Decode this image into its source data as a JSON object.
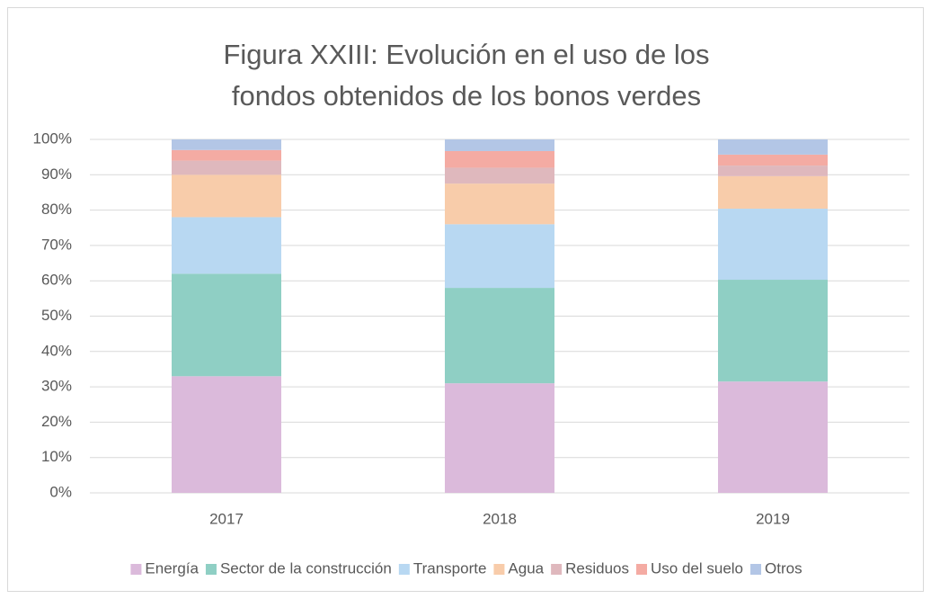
{
  "chart_data": {
    "type": "stacked_bar",
    "title": "Figura XXIII: Evolución en el uso de los fondos obtenidos de los bonos verdes",
    "categories": [
      "2017",
      "2018",
      "2019"
    ],
    "series": [
      {
        "name": "Energía",
        "color": "#dbbadb",
        "values": [
          33,
          31,
          31.5
        ]
      },
      {
        "name": "Sector de la construcción",
        "color": "#8fcfc4",
        "values": [
          29,
          27,
          28.8
        ]
      },
      {
        "name": "Transporte",
        "color": "#b8d8f2",
        "values": [
          16,
          18,
          20.1
        ]
      },
      {
        "name": "Agua",
        "color": "#f8ccaa",
        "values": [
          12,
          11.5,
          9.2
        ]
      },
      {
        "name": "Residuos",
        "color": "#dfb8bd",
        "values": [
          4,
          4.5,
          3
        ]
      },
      {
        "name": "Uso del suelo",
        "color": "#f4aba3",
        "values": [
          3,
          4.7,
          3.1
        ]
      },
      {
        "name": "Otros",
        "color": "#b3c6e6",
        "values": [
          3,
          3.3,
          4.3
        ]
      }
    ],
    "ylim": [
      0,
      100
    ],
    "yticks": [
      {
        "value": 0,
        "label": "0%"
      },
      {
        "value": 10,
        "label": "10%"
      },
      {
        "value": 20,
        "label": "20%"
      },
      {
        "value": 30,
        "label": "30%"
      },
      {
        "value": 40,
        "label": "40%"
      },
      {
        "value": 50,
        "label": "50%"
      },
      {
        "value": 60,
        "label": "60%"
      },
      {
        "value": 70,
        "label": "70%"
      },
      {
        "value": 80,
        "label": "80%"
      },
      {
        "value": 90,
        "label": "90%"
      },
      {
        "value": 100,
        "label": "100%"
      }
    ],
    "grid": true,
    "legend": "bottom"
  }
}
